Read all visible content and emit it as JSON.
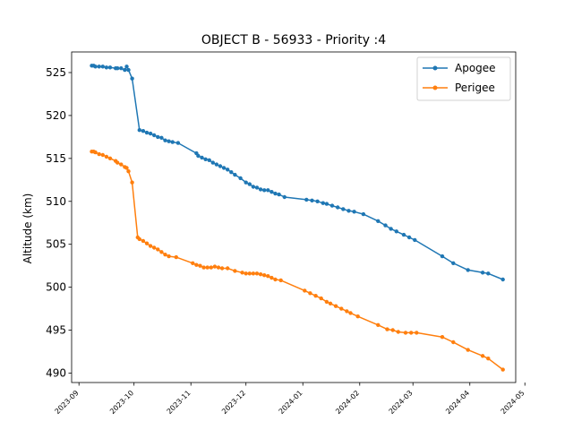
{
  "chart_data": {
    "type": "line",
    "title": "OBJECT B - 56933 - Priority :4",
    "xlabel": "",
    "ylabel": "Altitude (km)",
    "xlim": [
      "2023-08-28",
      "2024-04-26"
    ],
    "ylim": [
      488.9,
      527.4
    ],
    "x_ticks": [
      "2023-09",
      "2023-10",
      "2023-11",
      "2023-12",
      "2024-01",
      "2024-02",
      "2024-03",
      "2024-04",
      "2024-05"
    ],
    "y_ticks": [
      490,
      495,
      500,
      505,
      510,
      515,
      520,
      525
    ],
    "grid": false,
    "legend": "top-right",
    "series": [
      {
        "name": "Apogee",
        "color": "#1f77b4",
        "points": [
          [
            "2023-09-08",
            525.8
          ],
          [
            "2023-09-09",
            525.8
          ],
          [
            "2023-09-10",
            525.7
          ],
          [
            "2023-09-12",
            525.7
          ],
          [
            "2023-09-14",
            525.7
          ],
          [
            "2023-09-16",
            525.6
          ],
          [
            "2023-09-18",
            525.6
          ],
          [
            "2023-09-21",
            525.5
          ],
          [
            "2023-09-22",
            525.5
          ],
          [
            "2023-09-24",
            525.5
          ],
          [
            "2023-09-26",
            525.3
          ],
          [
            "2023-09-27",
            525.7
          ],
          [
            "2023-09-28",
            525.3
          ],
          [
            "2023-09-30",
            524.3
          ],
          [
            "2023-10-04",
            518.3
          ],
          [
            "2023-10-06",
            518.2
          ],
          [
            "2023-10-08",
            518.0
          ],
          [
            "2023-10-10",
            517.9
          ],
          [
            "2023-10-12",
            517.7
          ],
          [
            "2023-10-14",
            517.5
          ],
          [
            "2023-10-16",
            517.4
          ],
          [
            "2023-10-18",
            517.1
          ],
          [
            "2023-10-20",
            517.0
          ],
          [
            "2023-10-22",
            516.9
          ],
          [
            "2023-10-25",
            516.8
          ],
          [
            "2023-11-04",
            515.6
          ],
          [
            "2023-11-05",
            515.3
          ],
          [
            "2023-11-07",
            515.1
          ],
          [
            "2023-11-09",
            514.9
          ],
          [
            "2023-11-11",
            514.8
          ],
          [
            "2023-11-13",
            514.5
          ],
          [
            "2023-11-15",
            514.3
          ],
          [
            "2023-11-17",
            514.1
          ],
          [
            "2023-11-19",
            513.9
          ],
          [
            "2023-11-21",
            513.7
          ],
          [
            "2023-11-23",
            513.4
          ],
          [
            "2023-11-25",
            513.1
          ],
          [
            "2023-11-28",
            512.7
          ],
          [
            "2023-12-01",
            512.2
          ],
          [
            "2023-12-03",
            512.0
          ],
          [
            "2023-12-05",
            511.7
          ],
          [
            "2023-12-07",
            511.6
          ],
          [
            "2023-12-09",
            511.4
          ],
          [
            "2023-12-11",
            511.3
          ],
          [
            "2023-12-13",
            511.3
          ],
          [
            "2023-12-15",
            511.1
          ],
          [
            "2023-12-17",
            510.9
          ],
          [
            "2023-12-19",
            510.8
          ],
          [
            "2023-12-22",
            510.5
          ],
          [
            "2024-01-03",
            510.2
          ],
          [
            "2024-01-06",
            510.1
          ],
          [
            "2024-01-09",
            510.0
          ],
          [
            "2024-01-12",
            509.8
          ],
          [
            "2024-01-14",
            509.7
          ],
          [
            "2024-01-17",
            509.5
          ],
          [
            "2024-01-20",
            509.3
          ],
          [
            "2024-01-23",
            509.1
          ],
          [
            "2024-01-26",
            508.9
          ],
          [
            "2024-01-29",
            508.8
          ],
          [
            "2024-02-03",
            508.5
          ],
          [
            "2024-02-11",
            507.7
          ],
          [
            "2024-02-15",
            507.2
          ],
          [
            "2024-02-18",
            506.8
          ],
          [
            "2024-02-21",
            506.5
          ],
          [
            "2024-02-25",
            506.1
          ],
          [
            "2024-02-28",
            505.8
          ],
          [
            "2024-03-02",
            505.5
          ],
          [
            "2024-03-17",
            503.6
          ],
          [
            "2024-03-23",
            502.8
          ],
          [
            "2024-03-31",
            502.0
          ],
          [
            "2024-04-08",
            501.7
          ],
          [
            "2024-04-11",
            501.6
          ],
          [
            "2024-04-19",
            500.9
          ]
        ]
      },
      {
        "name": "Perigee",
        "color": "#ff7f0e",
        "points": [
          [
            "2023-09-08",
            515.8
          ],
          [
            "2023-09-09",
            515.8
          ],
          [
            "2023-09-10",
            515.7
          ],
          [
            "2023-09-12",
            515.5
          ],
          [
            "2023-09-14",
            515.4
          ],
          [
            "2023-09-16",
            515.2
          ],
          [
            "2023-09-18",
            515.0
          ],
          [
            "2023-09-21",
            514.7
          ],
          [
            "2023-09-22",
            514.5
          ],
          [
            "2023-09-24",
            514.3
          ],
          [
            "2023-09-26",
            514.0
          ],
          [
            "2023-09-27",
            513.9
          ],
          [
            "2023-09-28",
            513.5
          ],
          [
            "2023-09-30",
            512.2
          ],
          [
            "2023-10-03",
            505.8
          ],
          [
            "2023-10-04",
            505.6
          ],
          [
            "2023-10-06",
            505.4
          ],
          [
            "2023-10-08",
            505.1
          ],
          [
            "2023-10-10",
            504.8
          ],
          [
            "2023-10-12",
            504.6
          ],
          [
            "2023-10-14",
            504.4
          ],
          [
            "2023-10-16",
            504.1
          ],
          [
            "2023-10-18",
            503.8
          ],
          [
            "2023-10-20",
            503.6
          ],
          [
            "2023-10-24",
            503.5
          ],
          [
            "2023-11-02",
            502.8
          ],
          [
            "2023-11-04",
            502.6
          ],
          [
            "2023-11-06",
            502.5
          ],
          [
            "2023-11-08",
            502.3
          ],
          [
            "2023-11-10",
            502.3
          ],
          [
            "2023-11-12",
            502.3
          ],
          [
            "2023-11-14",
            502.4
          ],
          [
            "2023-11-16",
            502.3
          ],
          [
            "2023-11-18",
            502.2
          ],
          [
            "2023-11-21",
            502.2
          ],
          [
            "2023-11-25",
            501.9
          ],
          [
            "2023-11-29",
            501.7
          ],
          [
            "2023-12-01",
            501.6
          ],
          [
            "2023-12-03",
            501.6
          ],
          [
            "2023-12-05",
            501.6
          ],
          [
            "2023-12-07",
            501.6
          ],
          [
            "2023-12-09",
            501.5
          ],
          [
            "2023-12-11",
            501.4
          ],
          [
            "2023-12-13",
            501.3
          ],
          [
            "2023-12-15",
            501.1
          ],
          [
            "2023-12-17",
            500.9
          ],
          [
            "2023-12-20",
            500.8
          ],
          [
            "2024-01-02",
            499.6
          ],
          [
            "2024-01-05",
            499.3
          ],
          [
            "2024-01-08",
            499.0
          ],
          [
            "2024-01-11",
            498.7
          ],
          [
            "2024-01-14",
            498.3
          ],
          [
            "2024-01-16",
            498.1
          ],
          [
            "2024-01-19",
            497.8
          ],
          [
            "2024-01-22",
            497.5
          ],
          [
            "2024-01-25",
            497.2
          ],
          [
            "2024-01-27",
            497.0
          ],
          [
            "2024-01-31",
            496.6
          ],
          [
            "2024-02-11",
            495.6
          ],
          [
            "2024-02-16",
            495.1
          ],
          [
            "2024-02-19",
            495.0
          ],
          [
            "2024-02-22",
            494.8
          ],
          [
            "2024-02-26",
            494.7
          ],
          [
            "2024-02-29",
            494.7
          ],
          [
            "2024-03-03",
            494.7
          ],
          [
            "2024-03-17",
            494.2
          ],
          [
            "2024-03-23",
            493.6
          ],
          [
            "2024-03-31",
            492.7
          ],
          [
            "2024-04-08",
            492.0
          ],
          [
            "2024-04-11",
            491.7
          ],
          [
            "2024-04-19",
            490.4
          ]
        ]
      }
    ]
  }
}
